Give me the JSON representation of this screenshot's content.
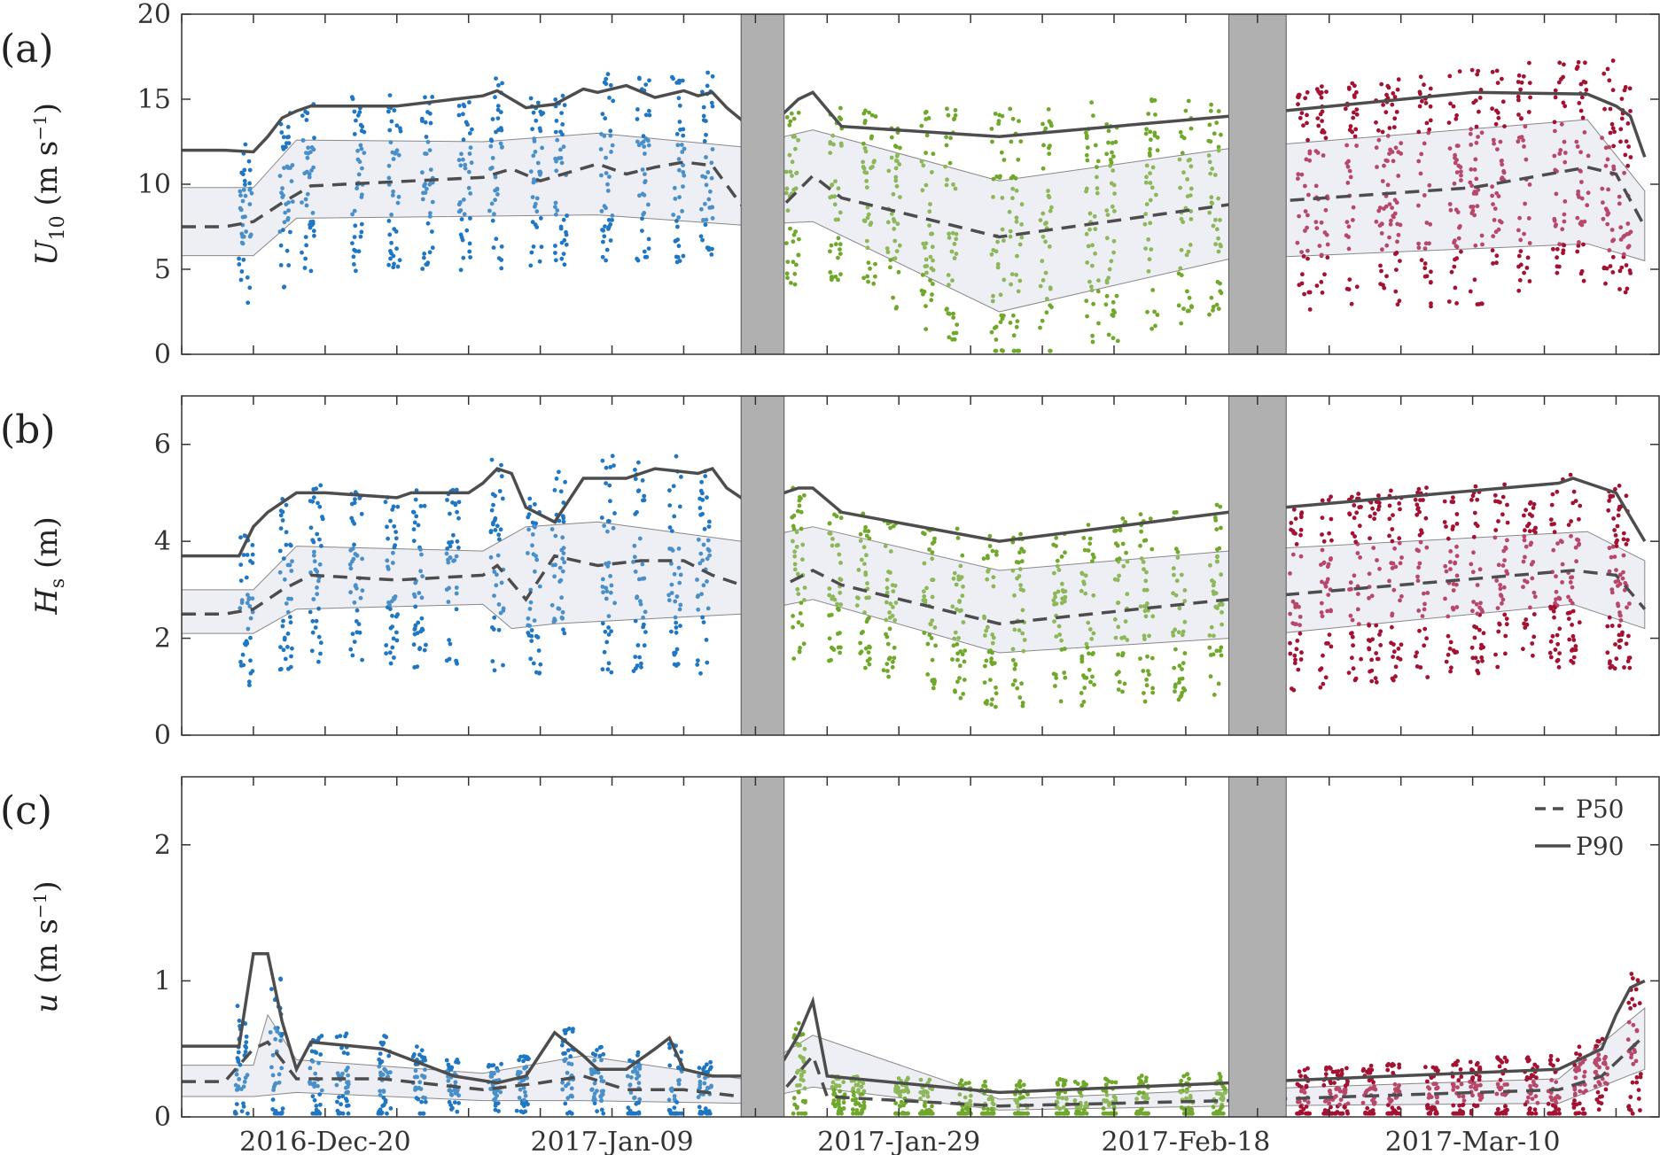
{
  "colors": {
    "cruise1": "#1f77c4",
    "cruise1_light": "#4a90c8",
    "cruise2": "#6fa82a",
    "cruise2_light": "#8db85a",
    "cruise3": "#a31232",
    "cruise3_light": "#b8486a",
    "line": "#4d4d4d",
    "band": "#eeeef5",
    "gap": "#b0b0b0"
  },
  "chart_data": [
    {
      "type": "scatter",
      "panel": "(a)",
      "ylabel": "U10 (m s−1)",
      "ylabel_main": "U",
      "ylabel_sub": "10",
      "ylabel_unit": " (m s",
      "ylabel_exp": "−1",
      "ylabel_close": ")",
      "ylim": [
        0,
        20
      ],
      "yticks": [
        0,
        5,
        10,
        15,
        20
      ],
      "xlim": [
        "2016-12-10",
        "2017-03-23"
      ],
      "xticks": [
        "2016-Dec-20",
        "2017-Jan-09",
        "2017-Jan-29",
        "2017-Feb-18",
        "2017-Mar-10"
      ],
      "gaps": [
        [
          "2017-01-18",
          "2017-01-21"
        ],
        [
          "2017-02-21",
          "2017-02-25"
        ]
      ],
      "series": [
        {
          "x": [
            "2016-12-10",
            "2016-12-13",
            "2016-12-15",
            "2016-12-16",
            "2016-12-17",
            "2016-12-18",
            "2016-12-19",
            "2016-12-21",
            "2016-12-25",
            "2016-12-31",
            "2017-01-01",
            "2017-01-02",
            "2017-01-03",
            "2017-01-05",
            "2017-01-07",
            "2017-01-08",
            "2017-01-10",
            "2017-01-12",
            "2017-01-14",
            "2017-01-15",
            "2017-01-16",
            "2017-01-17",
            "2017-01-18",
            "2017-01-21",
            "2017-01-22",
            "2017-01-23",
            "2017-01-25",
            "2017-02-05",
            "2017-02-21",
            "2017-03-10",
            "2017-03-18",
            "2017-03-20",
            "2017-03-21",
            "2017-03-22"
          ],
          "values": [
            12,
            12,
            11.9,
            12.8,
            13.9,
            14.3,
            14.6,
            14.6,
            14.6,
            15.2,
            15.5,
            15,
            14.5,
            14.7,
            15.6,
            15.4,
            15.8,
            15.1,
            15.5,
            15.2,
            15.4,
            14.5,
            13.8,
            14.2,
            15,
            15.4,
            13.4,
            12.8,
            14,
            15.4,
            15.3,
            14.6,
            14.0,
            11.6
          ]
        },
        {
          "x": [
            "2016-12-10",
            "2016-12-13",
            "2016-12-15",
            "2016-12-17",
            "2016-12-19",
            "2016-12-31",
            "2017-01-02",
            "2017-01-04",
            "2017-01-06",
            "2017-01-08",
            "2017-01-10",
            "2017-01-12",
            "2017-01-14",
            "2017-01-16",
            "2017-01-18",
            "2017-01-21",
            "2017-01-23",
            "2017-01-25",
            "2017-02-05",
            "2017-02-21",
            "2017-03-10",
            "2017-03-18",
            "2017-03-20",
            "2017-03-22"
          ],
          "values": [
            7.5,
            7.5,
            7.8,
            8.9,
            9.9,
            10.4,
            10.9,
            10.2,
            10.7,
            11.2,
            10.6,
            11.0,
            11.3,
            11.1,
            8.8,
            8.8,
            10.5,
            9.2,
            6.9,
            8.8,
            9.8,
            11.0,
            10.6,
            7.5
          ]
        },
        {
          "x": [
            "2016-12-10",
            "2016-12-15",
            "2016-12-18",
            "2017-01-08",
            "2017-01-18",
            "2017-01-23",
            "2017-02-05",
            "2017-02-21",
            "2017-03-18",
            "2017-03-22"
          ],
          "values": [
            5.8,
            5.8,
            8.0,
            8.2,
            7.6,
            7.8,
            2.5,
            5.6,
            6.5,
            5.5
          ]
        },
        {
          "x": [
            "2016-12-10",
            "2016-12-15",
            "2016-12-18",
            "2016-12-31",
            "2017-01-08",
            "2017-01-18",
            "2017-01-23",
            "2017-02-05",
            "2017-02-21",
            "2017-03-18",
            "2017-03-22"
          ],
          "values": [
            9.8,
            9.8,
            12.6,
            12.5,
            13.0,
            12.2,
            13.2,
            10.2,
            12.1,
            13.8,
            9.6
          ]
        }
      ]
    },
    {
      "type": "scatter",
      "panel": "(b)",
      "ylabel": "Hs (m)",
      "ylabel_main": "H",
      "ylabel_sub": "s",
      "ylabel_unit": " (m)",
      "ylim": [
        0,
        7
      ],
      "yticks": [
        0,
        2,
        4,
        6
      ],
      "xlim": [
        "2016-12-10",
        "2017-03-23"
      ],
      "xticks": [
        "2016-Dec-20",
        "2017-Jan-09",
        "2017-Jan-29",
        "2017-Feb-18",
        "2017-Mar-10"
      ],
      "gaps": [
        [
          "2017-01-18",
          "2017-01-21"
        ],
        [
          "2017-02-21",
          "2017-02-25"
        ]
      ],
      "series": [
        {
          "x": [
            "2016-12-10",
            "2016-12-13",
            "2016-12-14",
            "2016-12-15",
            "2016-12-16",
            "2016-12-18",
            "2016-12-20",
            "2016-12-25",
            "2016-12-26",
            "2016-12-30",
            "2016-12-31",
            "2017-01-01",
            "2017-01-02",
            "2017-01-03",
            "2017-01-05",
            "2017-01-07",
            "2017-01-10",
            "2017-01-12",
            "2017-01-15",
            "2017-01-16",
            "2017-01-17",
            "2017-01-18",
            "2017-01-21",
            "2017-01-22",
            "2017-01-23",
            "2017-01-25",
            "2017-02-05",
            "2017-02-21",
            "2017-03-16",
            "2017-03-17",
            "2017-03-20",
            "2017-03-22"
          ],
          "values": [
            3.7,
            3.7,
            3.7,
            4.3,
            4.6,
            5.0,
            5.0,
            4.9,
            5.0,
            5.0,
            5.2,
            5.5,
            5.4,
            4.7,
            4.4,
            5.3,
            5.3,
            5.5,
            5.4,
            5.5,
            5.1,
            4.9,
            5.0,
            5.1,
            5.1,
            4.6,
            4.0,
            4.6,
            5.2,
            5.3,
            5.0,
            4.0
          ]
        },
        {
          "x": [
            "2016-12-10",
            "2016-12-13",
            "2016-12-15",
            "2016-12-17",
            "2016-12-19",
            "2016-12-25",
            "2016-12-31",
            "2017-01-01",
            "2017-01-03",
            "2017-01-05",
            "2017-01-08",
            "2017-01-11",
            "2017-01-14",
            "2017-01-16",
            "2017-01-18",
            "2017-01-21",
            "2017-01-23",
            "2017-01-25",
            "2017-02-05",
            "2017-02-21",
            "2017-03-17",
            "2017-03-20",
            "2017-03-22"
          ],
          "values": [
            2.5,
            2.5,
            2.6,
            3.0,
            3.3,
            3.2,
            3.3,
            3.5,
            2.8,
            3.7,
            3.5,
            3.6,
            3.6,
            3.3,
            3.1,
            3.1,
            3.4,
            3.1,
            2.3,
            2.8,
            3.4,
            3.3,
            2.6
          ]
        },
        {
          "x": [
            "2016-12-10",
            "2016-12-15",
            "2016-12-18",
            "2016-12-31",
            "2017-01-02",
            "2017-01-05",
            "2017-01-18",
            "2017-01-23",
            "2017-02-05",
            "2017-02-21",
            "2017-03-17",
            "2017-03-22"
          ],
          "values": [
            2.1,
            2.1,
            2.6,
            2.7,
            2.2,
            2.3,
            2.5,
            2.8,
            1.7,
            2.0,
            2.7,
            2.2
          ]
        },
        {
          "x": [
            "2016-12-10",
            "2016-12-15",
            "2016-12-18",
            "2016-12-31",
            "2017-01-03",
            "2017-01-08",
            "2017-01-18",
            "2017-01-23",
            "2017-02-05",
            "2017-02-21",
            "2017-03-18",
            "2017-03-22"
          ],
          "values": [
            3.0,
            3.0,
            3.9,
            3.8,
            4.3,
            4.4,
            4.0,
            4.3,
            3.4,
            3.8,
            4.2,
            3.6
          ]
        }
      ]
    },
    {
      "type": "scatter",
      "panel": "(c)",
      "ylabel": "u (m s−1)",
      "ylabel_main": "u",
      "ylabel_sub": "",
      "ylabel_unit": " (m s",
      "ylabel_exp": "−1",
      "ylabel_close": ")",
      "ylim": [
        0,
        2.5
      ],
      "yticks": [
        0,
        1,
        2
      ],
      "xlim": [
        "2016-12-10",
        "2017-03-23"
      ],
      "xticks": [
        "2016-Dec-20",
        "2017-Jan-09",
        "2017-Jan-29",
        "2017-Feb-18",
        "2017-Mar-10"
      ],
      "gaps": [
        [
          "2017-01-18",
          "2017-01-21"
        ],
        [
          "2017-02-21",
          "2017-02-25"
        ]
      ],
      "legend": [
        "P50",
        "P90"
      ],
      "series": [
        {
          "x": [
            "2016-12-10",
            "2016-12-13",
            "2016-12-14",
            "2016-12-15",
            "2016-12-16",
            "2016-12-17",
            "2016-12-18",
            "2016-12-19",
            "2016-12-24",
            "2016-12-26",
            "2016-12-29",
            "2017-01-01",
            "2017-01-03",
            "2017-01-05",
            "2017-01-07",
            "2017-01-08",
            "2017-01-10",
            "2017-01-12",
            "2017-01-13",
            "2017-01-14",
            "2017-01-16",
            "2017-01-18",
            "2017-01-21",
            "2017-01-22",
            "2017-01-23",
            "2017-01-24",
            "2017-02-05",
            "2017-02-21",
            "2017-03-16",
            "2017-03-19",
            "2017-03-20",
            "2017-03-21",
            "2017-03-22"
          ],
          "values": [
            0.52,
            0.52,
            0.52,
            1.2,
            1.2,
            0.7,
            0.35,
            0.55,
            0.5,
            0.42,
            0.3,
            0.25,
            0.3,
            0.62,
            0.45,
            0.35,
            0.35,
            0.5,
            0.58,
            0.35,
            0.3,
            0.3,
            0.42,
            0.6,
            0.85,
            0.3,
            0.18,
            0.25,
            0.35,
            0.5,
            0.75,
            0.95,
            1.0
          ]
        },
        {
          "x": [
            "2016-12-10",
            "2016-12-13",
            "2016-12-15",
            "2016-12-16",
            "2016-12-18",
            "2016-12-24",
            "2016-12-31",
            "2017-01-04",
            "2017-01-07",
            "2017-01-10",
            "2017-01-14",
            "2017-01-18",
            "2017-01-21",
            "2017-01-23",
            "2017-01-24",
            "2017-02-05",
            "2017-02-21",
            "2017-03-16",
            "2017-03-19",
            "2017-03-21",
            "2017-03-22"
          ],
          "values": [
            0.26,
            0.26,
            0.5,
            0.55,
            0.28,
            0.28,
            0.2,
            0.25,
            0.3,
            0.2,
            0.2,
            0.15,
            0.2,
            0.45,
            0.15,
            0.08,
            0.12,
            0.2,
            0.3,
            0.5,
            0.6
          ]
        },
        {
          "x": [
            "2016-12-10",
            "2016-12-15",
            "2016-12-18",
            "2016-12-31",
            "2017-01-07",
            "2017-01-18",
            "2017-01-23",
            "2017-02-05",
            "2017-02-21",
            "2017-03-16",
            "2017-03-22"
          ],
          "values": [
            0.15,
            0.15,
            0.18,
            0.12,
            0.12,
            0.1,
            0.22,
            0.05,
            0.08,
            0.1,
            0.35
          ]
        },
        {
          "x": [
            "2016-12-10",
            "2016-12-15",
            "2016-12-16",
            "2016-12-18",
            "2016-12-31",
            "2017-01-07",
            "2017-01-18",
            "2017-01-23",
            "2017-02-05",
            "2017-02-21",
            "2017-03-16",
            "2017-03-22"
          ],
          "values": [
            0.38,
            0.38,
            0.75,
            0.42,
            0.32,
            0.45,
            0.28,
            0.6,
            0.13,
            0.2,
            0.28,
            0.8
          ]
        }
      ]
    }
  ]
}
